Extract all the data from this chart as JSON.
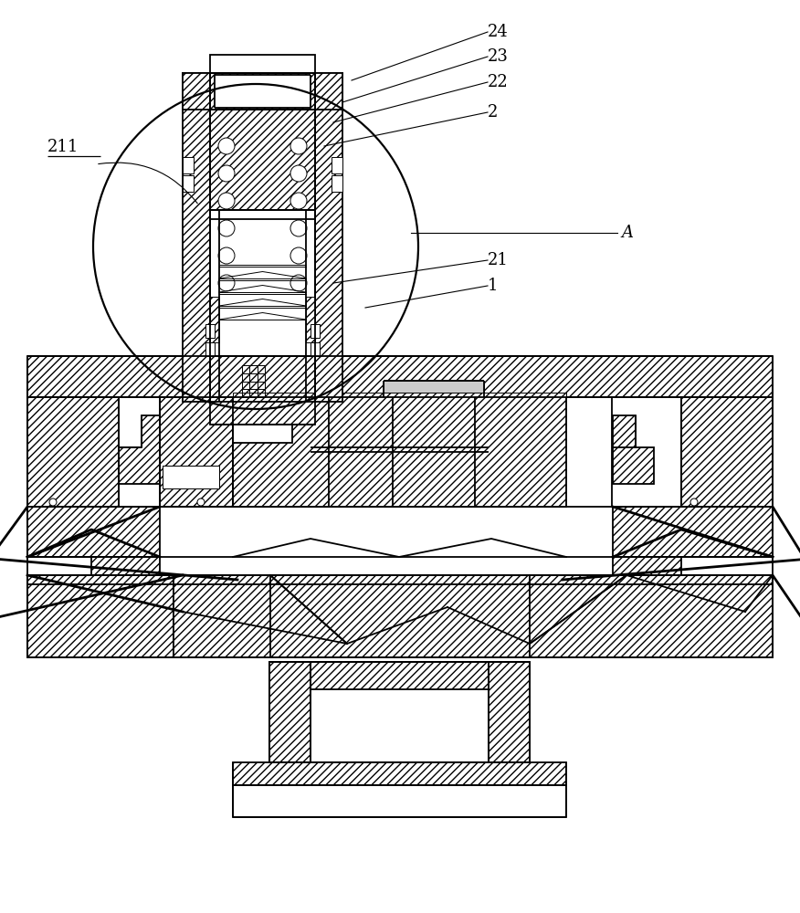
{
  "bg": "#ffffff",
  "lc": "#000000",
  "lw": 1.3,
  "tlw": 0.7,
  "thw": 2.0
}
